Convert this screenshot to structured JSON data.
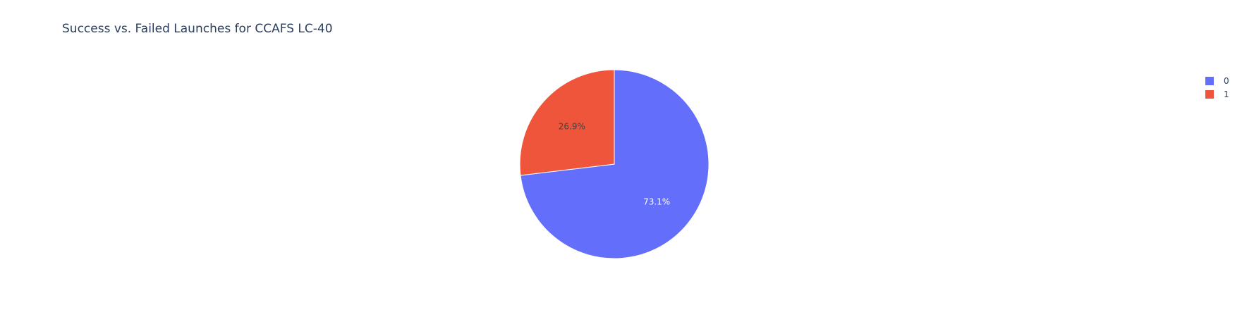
{
  "chart_data": {
    "type": "pie",
    "title": "Success vs. Failed Launches for CCAFS LC-40",
    "categories": [
      "0",
      "1"
    ],
    "values": [
      73.1,
      26.9
    ],
    "labels": [
      "73.1%",
      "26.9%"
    ],
    "colors": [
      "#636efa",
      "#ef553b"
    ],
    "label_colors": [
      "#ffffff",
      "#444444"
    ],
    "legend_placement": "top-right"
  }
}
